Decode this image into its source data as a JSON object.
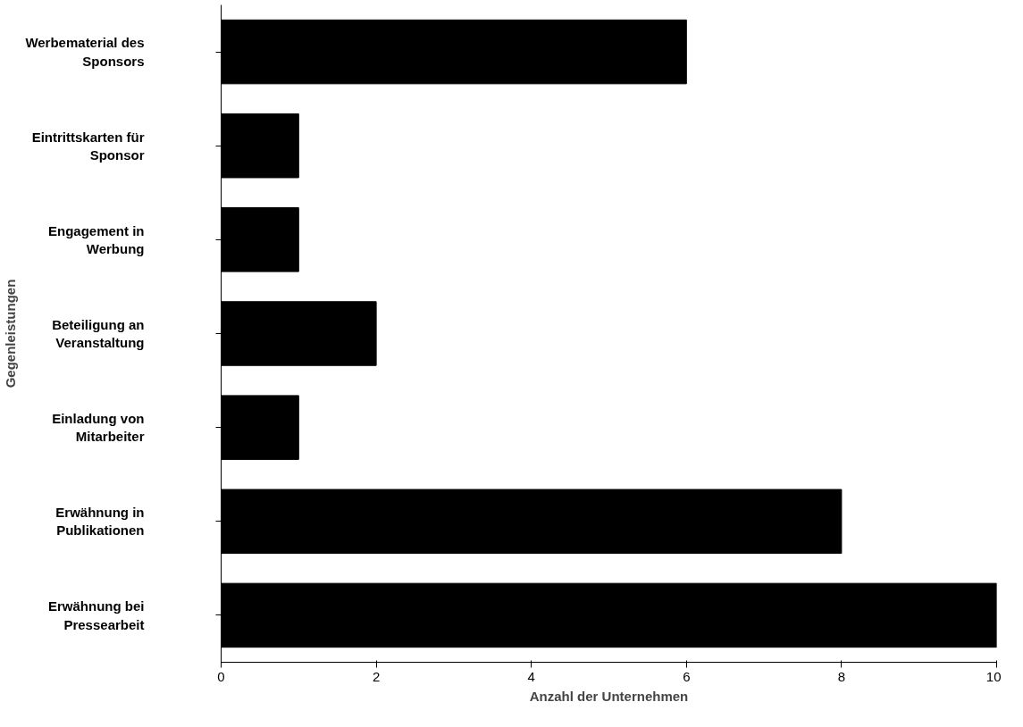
{
  "chart_data": {
    "type": "bar",
    "orientation": "horizontal",
    "xlabel": "Anzahl der Unternehmen",
    "ylabel": "Gegenleistungen",
    "categories": [
      "Werbematerial des\nSponsors",
      "Eintrittskarten für\nSponsor",
      "Engagement in\nWerbung",
      "Beteiligung an\nVeranstaltung",
      "Einladung von\nMitarbeiter",
      "Erwähnung in\nPublikationen",
      "Erwähnung bei\nPressearbeit"
    ],
    "values": [
      6,
      1,
      1,
      2,
      1,
      8,
      10
    ],
    "color": "#000000",
    "xlim": [
      0,
      10
    ],
    "xticks": [
      0,
      2,
      4,
      6,
      8,
      10
    ],
    "grid": false
  }
}
